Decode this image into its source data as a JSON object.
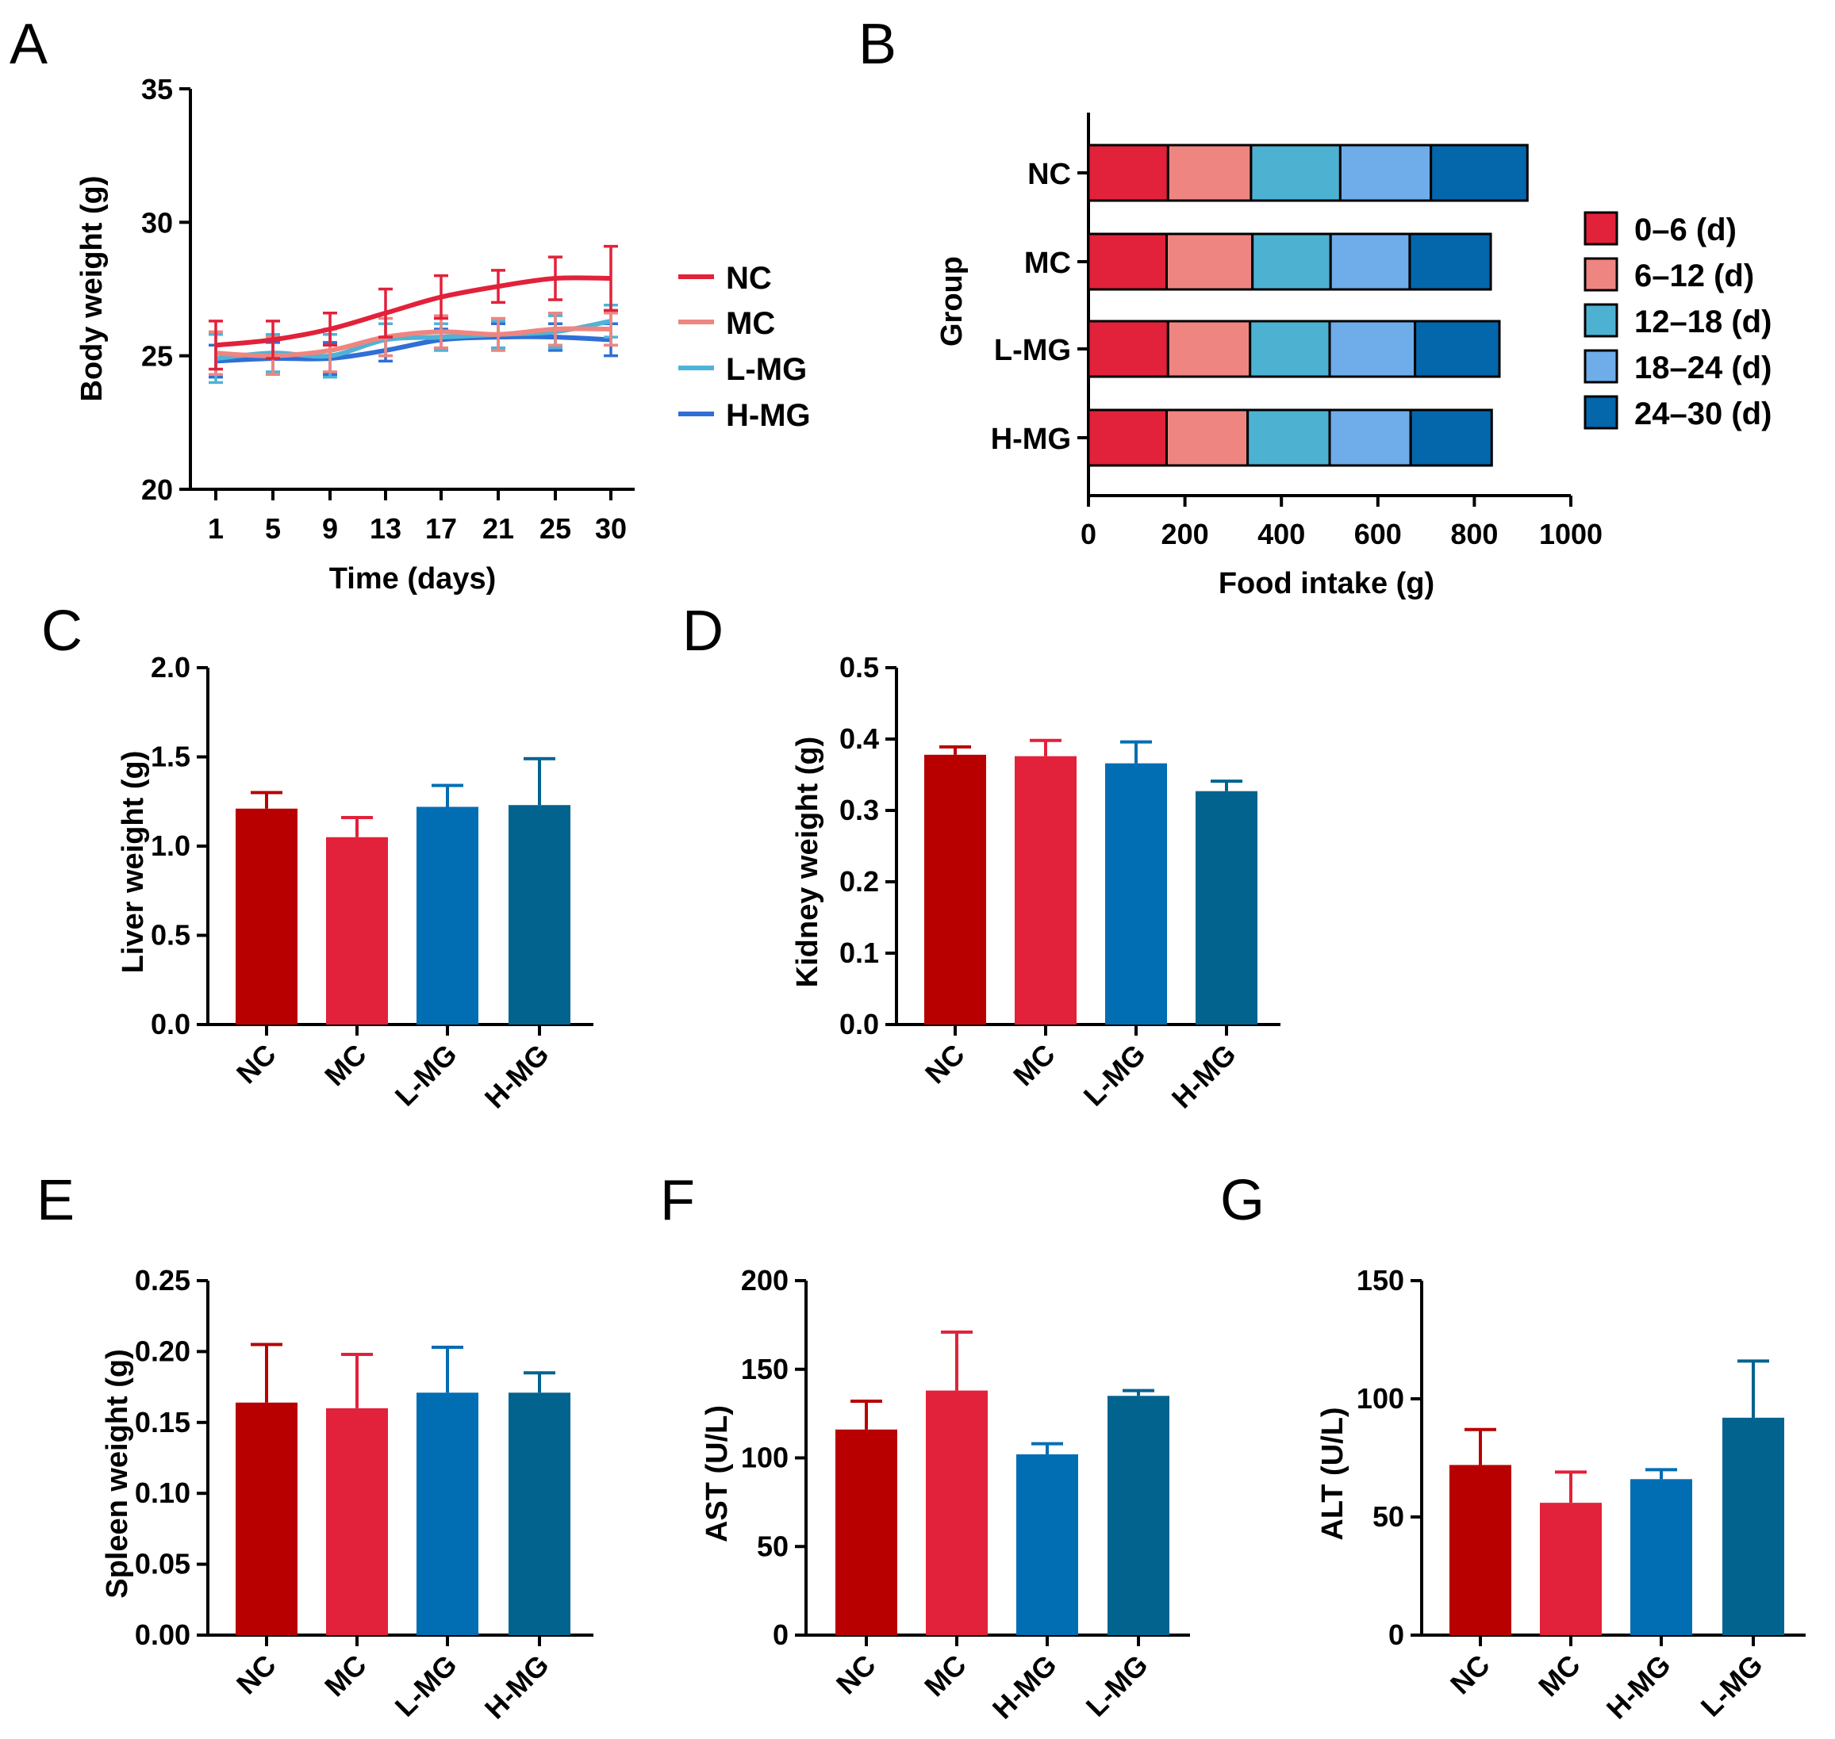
{
  "colors": {
    "NC": "#e2213a",
    "MC": "#ef8580",
    "L_MG": "#4fb3d6",
    "H_MG": "#2f6fd6",
    "bar_NC": "#b80000",
    "bar_MC": "#e2213a",
    "bar_LMG": "#016db3",
    "bar_HMG": "#03638f",
    "seg": [
      "#e2213a",
      "#ef8580",
      "#4db1d2",
      "#6eacea",
      "#0466ab"
    ]
  },
  "chart_data": [
    {
      "id": "A",
      "panel_label": "A",
      "type": "line",
      "xlabel": "Time (days)",
      "ylabel": "Body weight (g)",
      "x": [
        1,
        5,
        9,
        13,
        17,
        21,
        25,
        30
      ],
      "x_tick_labels": [
        "1",
        "5",
        "9",
        "13",
        "17",
        "21",
        "25",
        "30"
      ],
      "ylim": [
        20,
        35
      ],
      "y_ticks": [
        20,
        25,
        30,
        35
      ],
      "legend_position": "right",
      "series": [
        {
          "name": "NC",
          "color_key": "NC",
          "values": [
            25.4,
            25.6,
            26.0,
            26.6,
            27.2,
            27.6,
            27.9,
            27.9
          ],
          "errors": [
            0.9,
            0.7,
            0.6,
            0.9,
            0.8,
            0.6,
            0.8,
            1.2
          ]
        },
        {
          "name": "MC",
          "color_key": "MC",
          "values": [
            25.1,
            25.0,
            25.2,
            25.7,
            25.9,
            25.8,
            26.0,
            26.0
          ],
          "errors": [
            0.8,
            0.7,
            0.8,
            0.7,
            0.6,
            0.6,
            0.6,
            0.6
          ]
        },
        {
          "name": "L-MG",
          "color_key": "L_MG",
          "values": [
            24.9,
            25.1,
            25.0,
            25.6,
            25.7,
            25.8,
            25.9,
            26.3
          ],
          "errors": [
            0.9,
            0.7,
            0.8,
            0.6,
            0.5,
            0.5,
            0.6,
            0.6
          ]
        },
        {
          "name": "H-MG",
          "color_key": "H_MG",
          "values": [
            24.8,
            24.9,
            24.9,
            25.2,
            25.6,
            25.7,
            25.7,
            25.6
          ],
          "errors": [
            0.6,
            0.6,
            0.6,
            0.4,
            0.4,
            0.5,
            0.5,
            0.6
          ]
        }
      ]
    },
    {
      "id": "B",
      "panel_label": "B",
      "type": "bar",
      "orientation": "horizontal",
      "stacked": true,
      "xlabel": "Food intake (g)",
      "ylabel": "Group",
      "categories": [
        "NC",
        "MC",
        "L-MG",
        "H-MG"
      ],
      "xlim": [
        0,
        1000
      ],
      "x_ticks": [
        0,
        200,
        400,
        600,
        800,
        1000
      ],
      "legend_position": "right",
      "series": [
        {
          "name": "0–6 (d)",
          "values": [
            165,
            162,
            165,
            162
          ]
        },
        {
          "name": "6–12 (d)",
          "values": [
            172,
            178,
            170,
            168
          ]
        },
        {
          "name": "12–18 (d)",
          "values": [
            185,
            162,
            165,
            170
          ]
        },
        {
          "name": "18–24 (d)",
          "values": [
            188,
            164,
            177,
            168
          ]
        },
        {
          "name": "24–30 (d)",
          "values": [
            200,
            168,
            175,
            168
          ]
        }
      ]
    },
    {
      "id": "C",
      "panel_label": "C",
      "type": "bar",
      "ylabel": "Liver weight (g)",
      "categories": [
        "NC",
        "MC",
        "L-MG",
        "H-MG"
      ],
      "bar_color_keys": [
        "bar_NC",
        "bar_MC",
        "bar_LMG",
        "bar_HMG"
      ],
      "values": [
        1.21,
        1.05,
        1.22,
        1.23
      ],
      "errors": [
        0.09,
        0.11,
        0.12,
        0.26
      ],
      "ylim": [
        0,
        2.0
      ],
      "y_ticks": [
        0,
        0.5,
        1.0,
        1.5,
        2.0
      ],
      "y_tick_labels": [
        "0.0",
        "0.5",
        "1.0",
        "1.5",
        "2.0"
      ]
    },
    {
      "id": "D",
      "panel_label": "D",
      "type": "bar",
      "ylabel": "Kidney weight (g)",
      "categories": [
        "NC",
        "MC",
        "L-MG",
        "H-MG"
      ],
      "bar_color_keys": [
        "bar_NC",
        "bar_MC",
        "bar_LMG",
        "bar_HMG"
      ],
      "values": [
        0.378,
        0.376,
        0.366,
        0.327
      ],
      "errors": [
        0.011,
        0.022,
        0.03,
        0.014
      ],
      "ylim": [
        0,
        0.5
      ],
      "y_ticks": [
        0,
        0.1,
        0.2,
        0.3,
        0.4,
        0.5
      ],
      "y_tick_labels": [
        "0.0",
        "0.1",
        "0.2",
        "0.3",
        "0.4",
        "0.5"
      ]
    },
    {
      "id": "E",
      "panel_label": "E",
      "type": "bar",
      "ylabel": "Spleen weight (g)",
      "categories": [
        "NC",
        "MC",
        "L-MG",
        "H-MG"
      ],
      "bar_color_keys": [
        "bar_NC",
        "bar_MC",
        "bar_LMG",
        "bar_HMG"
      ],
      "values": [
        0.164,
        0.16,
        0.171,
        0.171
      ],
      "errors": [
        0.041,
        0.038,
        0.032,
        0.014
      ],
      "ylim": [
        0,
        0.25
      ],
      "y_ticks": [
        0,
        0.05,
        0.1,
        0.15,
        0.2,
        0.25
      ],
      "y_tick_labels": [
        "0.00",
        "0.05",
        "0.10",
        "0.15",
        "0.20",
        "0.25"
      ]
    },
    {
      "id": "F",
      "panel_label": "F",
      "type": "bar",
      "ylabel": "AST (U/L)",
      "categories": [
        "NC",
        "MC",
        "H-MG",
        "L-MG"
      ],
      "bar_color_keys": [
        "bar_NC",
        "bar_MC",
        "bar_LMG",
        "bar_HMG"
      ],
      "values": [
        116,
        138,
        102,
        135
      ],
      "errors": [
        16,
        33,
        6,
        3
      ],
      "ylim": [
        0,
        200
      ],
      "y_ticks": [
        0,
        50,
        100,
        150,
        200
      ],
      "y_tick_labels": [
        "0",
        "50",
        "100",
        "150",
        "200"
      ]
    },
    {
      "id": "G",
      "panel_label": "G",
      "type": "bar",
      "ylabel": "ALT (U/L)",
      "categories": [
        "NC",
        "MC",
        "H-MG",
        "L-MG"
      ],
      "bar_color_keys": [
        "bar_NC",
        "bar_MC",
        "bar_LMG",
        "bar_HMG"
      ],
      "values": [
        72,
        56,
        66,
        92
      ],
      "errors": [
        15,
        13,
        4,
        24
      ],
      "ylim": [
        0,
        150
      ],
      "y_ticks": [
        0,
        50,
        100,
        150
      ],
      "y_tick_labels": [
        "0",
        "50",
        "100",
        "150"
      ]
    }
  ]
}
